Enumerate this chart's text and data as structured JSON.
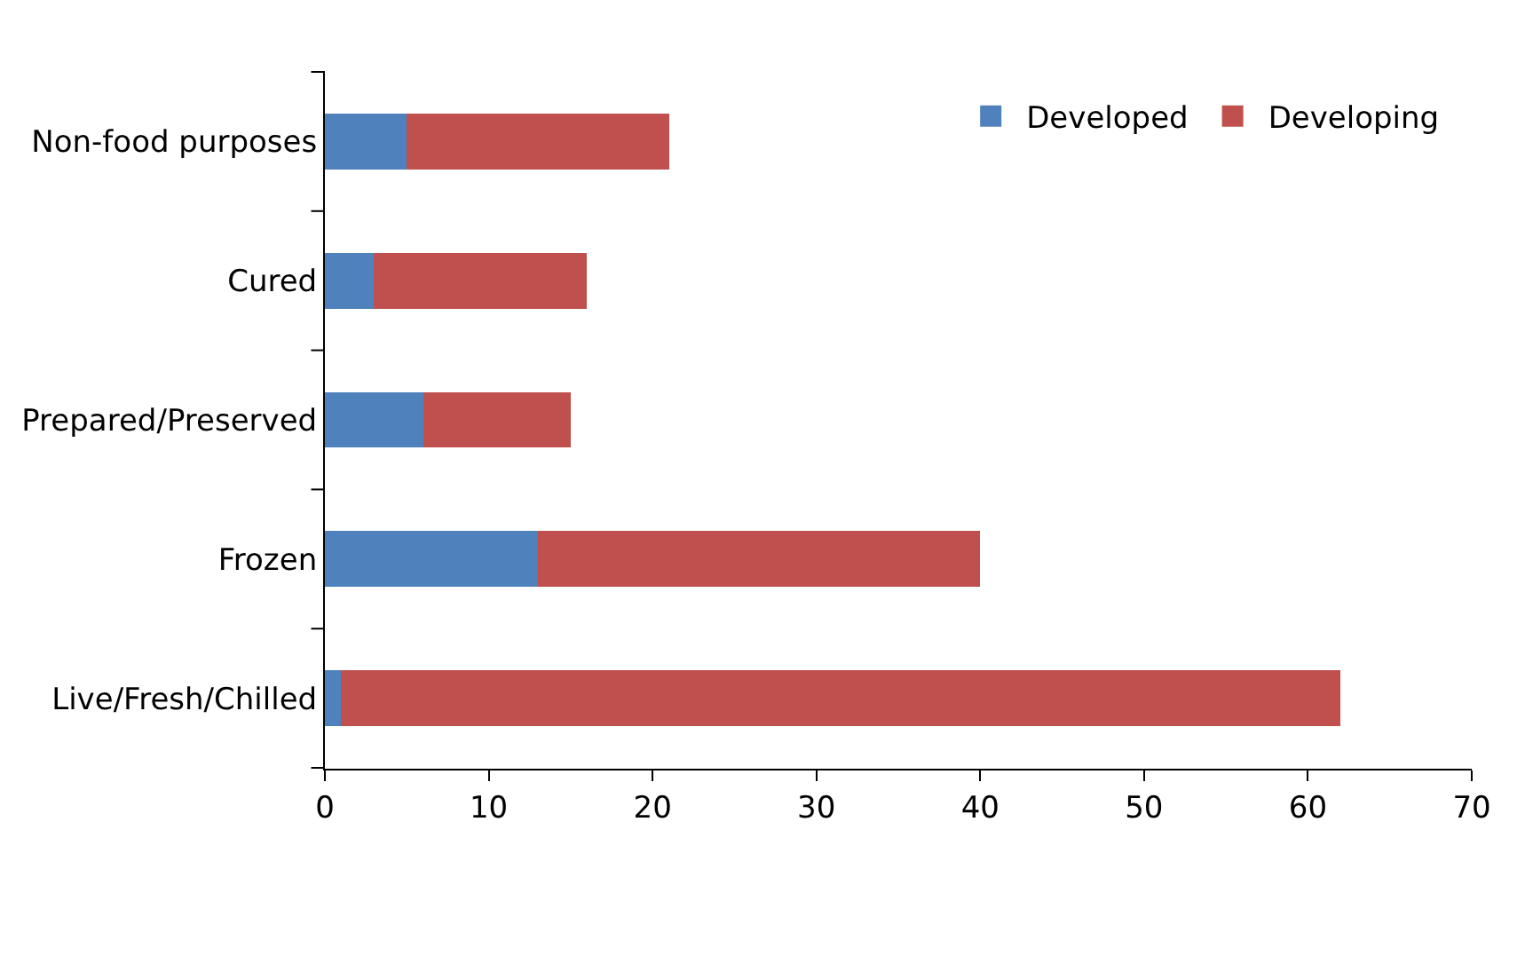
{
  "chart_data": {
    "type": "bar",
    "orientation": "horizontal",
    "stacked": true,
    "categories": [
      "Non-food purposes",
      "Cured",
      "Prepared/Preserved",
      "Frozen",
      "Live/Fresh/Chilled"
    ],
    "series": [
      {
        "name": "Developed",
        "color": "#4f81bd",
        "values": [
          5,
          3,
          6,
          13,
          1
        ]
      },
      {
        "name": "Developing",
        "color": "#c0504d",
        "values": [
          16,
          13,
          9,
          27,
          61
        ]
      }
    ],
    "xlim": [
      0,
      70
    ],
    "xticks": [
      0,
      10,
      20,
      30,
      40,
      50,
      60,
      70
    ],
    "legend": "top right"
  }
}
